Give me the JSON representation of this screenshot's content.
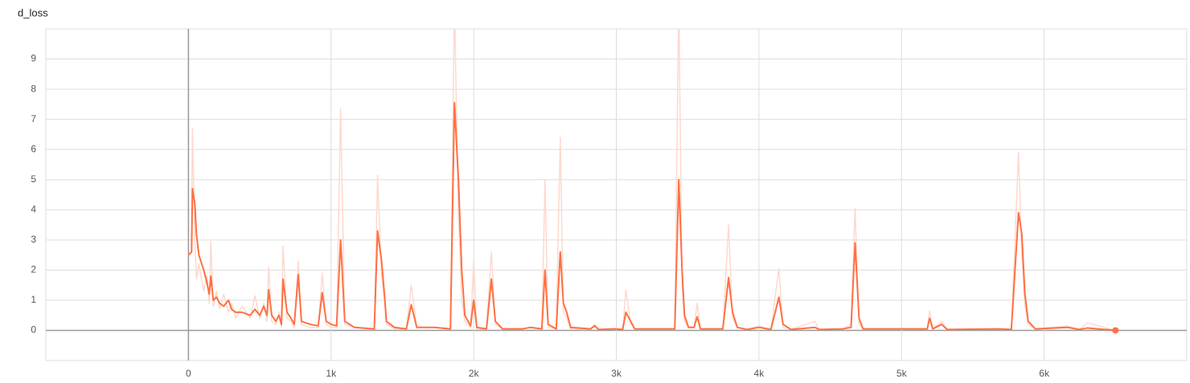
{
  "chart_data": {
    "type": "line",
    "title": "d_loss",
    "x": [
      0,
      22,
      28,
      45,
      56,
      73,
      107,
      129,
      146,
      157,
      174,
      197,
      219,
      247,
      281,
      303,
      331,
      376,
      433,
      466,
      500,
      528,
      551,
      562,
      584,
      612,
      635,
      652,
      663,
      691,
      719,
      742,
      770,
      792,
      854,
      910,
      938,
      966,
      1000,
      1039,
      1067,
      1096,
      1163,
      1303,
      1326,
      1354,
      1376,
      1388,
      1444,
      1528,
      1562,
      1601,
      1725,
      1837,
      1865,
      1893,
      1916,
      1938,
      1978,
      2000,
      2022,
      2090,
      2124,
      2152,
      2202,
      2343,
      2399,
      2478,
      2500,
      2522,
      2579,
      2607,
      2629,
      2652,
      2680,
      2820,
      2848,
      2876,
      2989,
      3045,
      3067,
      3101,
      3129,
      3410,
      3438,
      3461,
      3478,
      3506,
      3545,
      3567,
      3590,
      3747,
      3787,
      3815,
      3848,
      3916,
      4000,
      4084,
      4140,
      4169,
      4225,
      4393,
      4421,
      4590,
      4646,
      4674,
      4702,
      4730,
      5180,
      5197,
      5219,
      5281,
      5320,
      5685,
      5770,
      5820,
      5843,
      5865,
      5888,
      5938,
      6163,
      6247,
      6303,
      6500
    ],
    "series": [
      {
        "color": "#fdd9ce",
        "values": [
          2.5,
          2.6,
          6.7,
          3.0,
          1.7,
          2.2,
          1.3,
          1.8,
          0.9,
          2.95,
          0.8,
          1.3,
          0.7,
          1.2,
          0.6,
          0.9,
          0.4,
          0.8,
          0.4,
          1.15,
          0.4,
          0.9,
          0.3,
          2.1,
          0.3,
          0.2,
          0.6,
          0.1,
          2.8,
          0.4,
          0.3,
          0.1,
          2.3,
          0.2,
          0.1,
          0.1,
          1.9,
          0.2,
          0.1,
          0.1,
          7.35,
          0.2,
          0.1,
          0.05,
          5.15,
          1.8,
          0.9,
          0.2,
          0.05,
          0.05,
          1.5,
          0.1,
          0.1,
          0.05,
          11,
          3.8,
          1.0,
          0.3,
          0.1,
          2.3,
          0.05,
          0.05,
          2.6,
          0.2,
          0.05,
          0.05,
          0.1,
          0.05,
          5.0,
          0.1,
          0.05,
          6.4,
          0.6,
          0.4,
          0.05,
          0.05,
          0.2,
          0.03,
          0.05,
          0.03,
          1.35,
          0.2,
          0.05,
          0.05,
          11,
          1.5,
          0.3,
          0.1,
          0.1,
          0.9,
          0.05,
          0.05,
          3.5,
          0.4,
          0.1,
          0.03,
          0.15,
          0.03,
          2.05,
          0.1,
          0.03,
          0.3,
          0.03,
          0.05,
          0.2,
          4.05,
          0.2,
          0.05,
          0.05,
          0.65,
          0.05,
          0.3,
          0.03,
          0.05,
          0.03,
          5.9,
          2.5,
          0.8,
          0.2,
          0.05,
          0.15,
          0.03,
          0.25,
          0.0
        ]
      },
      {
        "color": "#ff7043",
        "values": [
          2.5,
          2.6,
          4.7,
          4.2,
          3.2,
          2.5,
          2.0,
          1.6,
          1.2,
          1.8,
          1.0,
          1.1,
          0.9,
          0.8,
          1.0,
          0.7,
          0.6,
          0.6,
          0.5,
          0.7,
          0.5,
          0.8,
          0.5,
          1.35,
          0.5,
          0.3,
          0.5,
          0.2,
          1.7,
          0.6,
          0.4,
          0.2,
          1.85,
          0.3,
          0.2,
          0.15,
          1.25,
          0.3,
          0.2,
          0.15,
          3.0,
          0.3,
          0.1,
          0.05,
          3.3,
          2.3,
          1.1,
          0.3,
          0.1,
          0.05,
          0.85,
          0.1,
          0.1,
          0.05,
          7.55,
          5.0,
          2.0,
          0.5,
          0.15,
          1.0,
          0.1,
          0.05,
          1.7,
          0.3,
          0.05,
          0.05,
          0.1,
          0.05,
          2.0,
          0.2,
          0.05,
          2.6,
          0.9,
          0.6,
          0.1,
          0.05,
          0.15,
          0.03,
          0.05,
          0.03,
          0.6,
          0.3,
          0.05,
          0.05,
          5.0,
          2.0,
          0.5,
          0.1,
          0.1,
          0.45,
          0.05,
          0.05,
          1.75,
          0.6,
          0.1,
          0.03,
          0.1,
          0.03,
          1.1,
          0.2,
          0.03,
          0.1,
          0.03,
          0.05,
          0.1,
          2.9,
          0.4,
          0.05,
          0.05,
          0.4,
          0.05,
          0.2,
          0.03,
          0.05,
          0.03,
          3.9,
          3.2,
          1.2,
          0.3,
          0.05,
          0.1,
          0.03,
          0.08,
          0.0
        ]
      }
    ],
    "xlim": [
      -1000,
      7000
    ],
    "xticks": [
      0,
      {
        "value": 1000,
        "label": "1k"
      },
      {
        "value": 2000,
        "label": "2k"
      },
      {
        "value": 3000,
        "label": "3k"
      },
      {
        "value": 4000,
        "label": "4k"
      },
      {
        "value": 5000,
        "label": "5k"
      },
      {
        "value": 6000,
        "label": "6k"
      }
    ],
    "ylim": [
      -1,
      10
    ],
    "yticks": [
      0,
      1,
      2,
      3,
      4,
      5,
      6,
      7,
      8,
      9
    ],
    "grid": true
  }
}
